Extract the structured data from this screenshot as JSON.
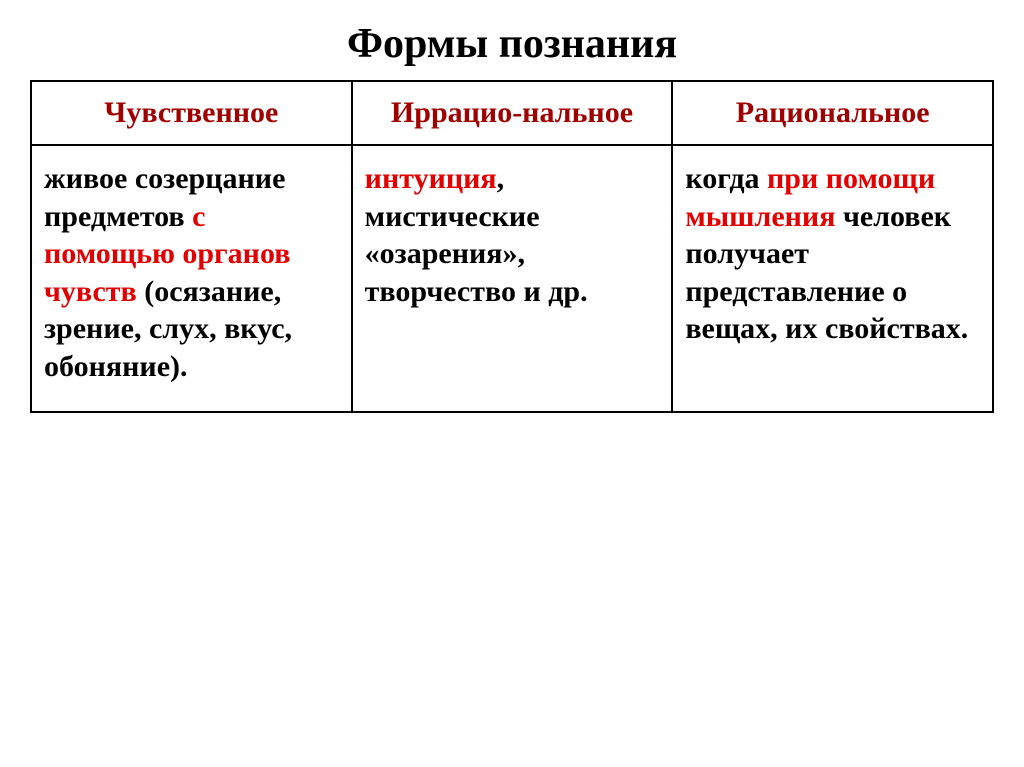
{
  "title": "Формы познания",
  "title_fontsize": 42,
  "table": {
    "header_color": "#a00000",
    "header_fontsize": 30,
    "cell_fontsize": 30,
    "columns": [
      {
        "label": "Чувственное"
      },
      {
        "label": "Иррацио-нальное"
      },
      {
        "label": "Рациональное"
      }
    ],
    "cells": {
      "c1": {
        "runs": [
          {
            "t": "живое созерцание предметов ",
            "c": "blk"
          },
          {
            "t": "с помощью органов чувств ",
            "c": "red"
          },
          {
            "t": "(осязание, зрение, слух, вкус, обоняние).",
            "c": "blk"
          }
        ]
      },
      "c2": {
        "runs": [
          {
            "t": "интуиция",
            "c": "red"
          },
          {
            "t": ", мистические «озарения», творчество и др.",
            "c": "blk"
          }
        ]
      },
      "c3": {
        "runs": [
          {
            "t": "когда ",
            "c": "blk"
          },
          {
            "t": "при помощи мышления ",
            "c": "red"
          },
          {
            "t": "человек получает представление о вещах, их свойствах.",
            "c": "blk"
          }
        ]
      }
    }
  }
}
